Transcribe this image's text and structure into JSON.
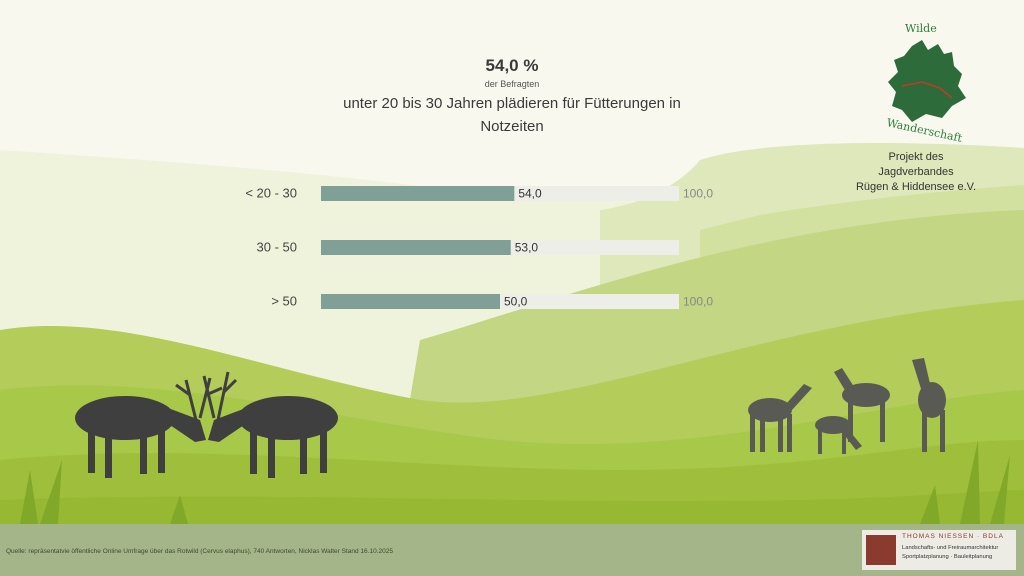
{
  "headline": {
    "value": "54,0 %",
    "sub": "der Befragten",
    "text": "unter 20 bis 30 Jahren plädieren für Fütterungen in Notzeiten"
  },
  "chart_data": {
    "type": "bar",
    "orientation": "horizontal",
    "categories": [
      "< 20 - 30",
      "30 - 50",
      "> 50"
    ],
    "values": [
      54.0,
      53.0,
      50.0
    ],
    "value_labels": [
      "54,0",
      "53,0",
      "50,0"
    ],
    "max": 100,
    "max_labels": [
      "100,0",
      "",
      "100,0"
    ],
    "xlim": [
      0,
      100
    ],
    "colors": {
      "bar": "#7f9f97",
      "track": "#eeeee8"
    }
  },
  "logo": {
    "top": "Wilde",
    "bottom": "Wanderschaft",
    "color": "#2e7d3a"
  },
  "project": [
    "Projekt des",
    "Jagdverbandes",
    "Rügen & Hiddensee e.V."
  ],
  "footer": {
    "source": "Quelle: repräsentatvie öffentliche Online Umfrage über das Rotwild (Cervus elaphus), 740 Antworten, Nicklas Walter Stand 16.10.2025",
    "firm_name": "THOMAS NIESSEN · BDLA",
    "firm_line1": "Landschafts- und Freiraumarchitektur",
    "firm_line2": "Sportplatzplanung · Bauleitplanung"
  }
}
